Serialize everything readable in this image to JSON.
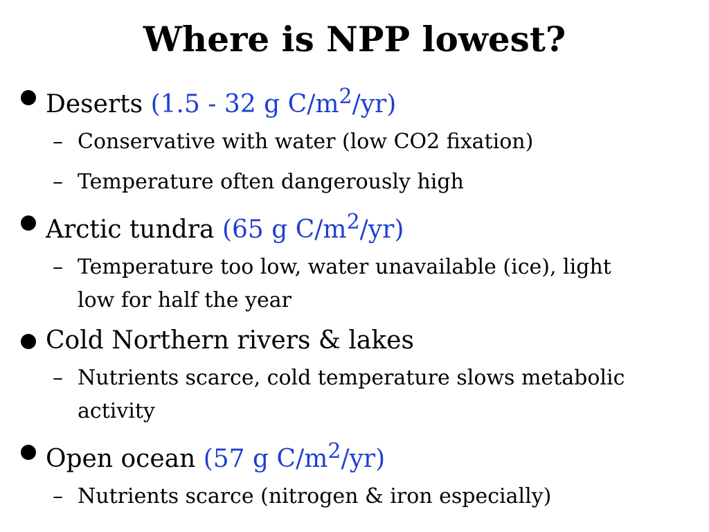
{
  "slide": {
    "title": "Where is NPP lowest?",
    "bullets": [
      {
        "label": "Deserts",
        "stat_prefix": "(1.5 - 32 g C/m",
        "stat_sup": "2",
        "stat_suffix": "/yr)",
        "subs": [
          "Conservative with water (low CO2 fixation)",
          "Temperature often dangerously high"
        ]
      },
      {
        "label": "Arctic tundra",
        "stat_prefix": "(65 g C/m",
        "stat_sup": "2",
        "stat_suffix": "/yr)",
        "subs": [
          "Temperature too low, water unavailable (ice), light low for half the year"
        ]
      },
      {
        "label": "Cold Northern rivers & lakes",
        "subs": [
          "Nutrients scarce, cold temperature slows metabolic activity"
        ]
      },
      {
        "label": "Open ocean",
        "stat_prefix": "(57 g C/m",
        "stat_sup": "2",
        "stat_suffix": "/yr)",
        "subs": [
          "Nutrients scarce (nitrogen & iron especially)"
        ]
      }
    ],
    "dash_glyph": "–",
    "colors": {
      "text": "#000000",
      "stat": "#1f3fd0",
      "background": "#ffffff"
    },
    "icons": {
      "bullet": "filled-circle-bullet-icon"
    }
  }
}
